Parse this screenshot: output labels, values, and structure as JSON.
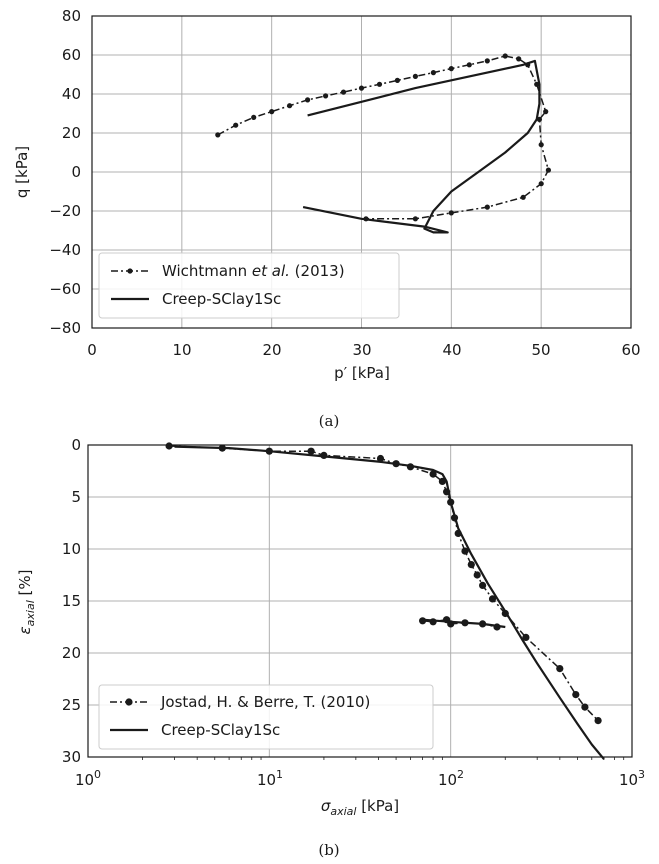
{
  "chart_data": [
    {
      "type": "line",
      "caption": "(a)",
      "xlabel": "p′ [kPa]",
      "ylabel": "q [kPa]",
      "xlim": [
        0,
        60
      ],
      "ylim": [
        -80,
        80
      ],
      "xticks": [
        "0",
        "10",
        "20",
        "30",
        "40",
        "50",
        "60"
      ],
      "yticks": [
        "80",
        "60",
        "40",
        "20",
        "0",
        "−20",
        "−40",
        "−60",
        "−80"
      ],
      "grid": true,
      "legend_position": "lower-left",
      "series": [
        {
          "name_parts": [
            "Wichtmann ",
            "et al.",
            " (2013)"
          ],
          "style": "dashdot-marker",
          "x": [
            14,
            16,
            18,
            20,
            22,
            24,
            26,
            28,
            30,
            32,
            34,
            36,
            38,
            40,
            42,
            44,
            46,
            47.5,
            48.5,
            49.5,
            50.5,
            49.8,
            50,
            50.8,
            50,
            48,
            44,
            40,
            36,
            30.5
          ],
          "y": [
            19,
            24,
            28,
            31,
            34,
            37,
            39,
            41,
            43,
            45,
            47,
            49,
            51,
            53,
            55,
            57,
            59.5,
            58,
            55,
            45,
            31,
            27,
            14,
            1,
            -6,
            -13,
            -18,
            -21,
            -24,
            -24
          ]
        },
        {
          "name": "Creep-SClay1Sc",
          "style": "solid",
          "x": [
            24,
            30,
            36,
            42,
            48,
            49.3,
            49.8,
            49.8,
            49.5,
            48.5,
            46,
            43,
            40,
            38,
            37,
            38,
            39.6,
            37,
            30,
            23.5
          ],
          "y": [
            29,
            36,
            43,
            49,
            55,
            57,
            45,
            35,
            27,
            20,
            10,
            0,
            -10,
            -20,
            -29,
            -31,
            -31,
            -28,
            -24,
            -18
          ]
        }
      ]
    },
    {
      "type": "line",
      "caption": "(b)",
      "xlabel": "σaxial [kPa]",
      "ylabel": "εaxial [%]",
      "xscale": "log",
      "xlim": [
        1,
        1000
      ],
      "ylim": [
        30,
        0
      ],
      "xticks": [
        "10",
        "10",
        "10",
        "10"
      ],
      "xtick_exponents": [
        "0",
        "1",
        "2",
        "3"
      ],
      "yticks": [
        "0",
        "5",
        "10",
        "15",
        "20",
        "25",
        "30"
      ],
      "grid": true,
      "legend_position": "lower-left",
      "series": [
        {
          "name": "Jostad, H. & Berre, T. (2010)",
          "style": "dashdot-marker",
          "x": [
            2.8,
            5.5,
            10,
            17,
            20,
            41,
            50,
            60,
            80,
            90,
            95,
            100,
            105,
            110,
            120,
            130,
            140,
            150,
            170,
            200,
            260,
            400,
            490,
            550,
            650
          ],
          "y": [
            0.1,
            0.3,
            0.6,
            0.6,
            1.0,
            1.3,
            1.8,
            2.1,
            2.8,
            3.5,
            4.5,
            5.5,
            7.0,
            8.5,
            10.2,
            11.5,
            12.5,
            13.5,
            14.8,
            16.2,
            18.5,
            21.5,
            24.0,
            25.2,
            26.5
          ]
        },
        {
          "name": "",
          "style": "dashdot-marker",
          "x": [
            70,
            80,
            95,
            100,
            120,
            150,
            180
          ],
          "y": [
            16.9,
            17.0,
            16.8,
            17.2,
            17.1,
            17.2,
            17.5
          ]
        },
        {
          "name": "Creep-SClay1Sc",
          "style": "solid",
          "x": [
            3,
            6,
            10,
            20,
            40,
            60,
            80,
            90,
            95,
            100,
            110,
            130,
            160,
            200,
            250,
            300,
            400,
            500,
            600,
            700
          ],
          "y": [
            0.15,
            0.3,
            0.6,
            1.1,
            1.6,
            2.0,
            2.4,
            2.8,
            3.5,
            5.5,
            8.0,
            10.5,
            13.3,
            16.0,
            18.8,
            21.0,
            24.3,
            26.8,
            28.8,
            30.2
          ]
        },
        {
          "name": "",
          "style": "solid",
          "x": [
            70,
            100,
            150,
            200
          ],
          "y": [
            16.8,
            17.0,
            17.2,
            17.5
          ]
        }
      ]
    }
  ]
}
